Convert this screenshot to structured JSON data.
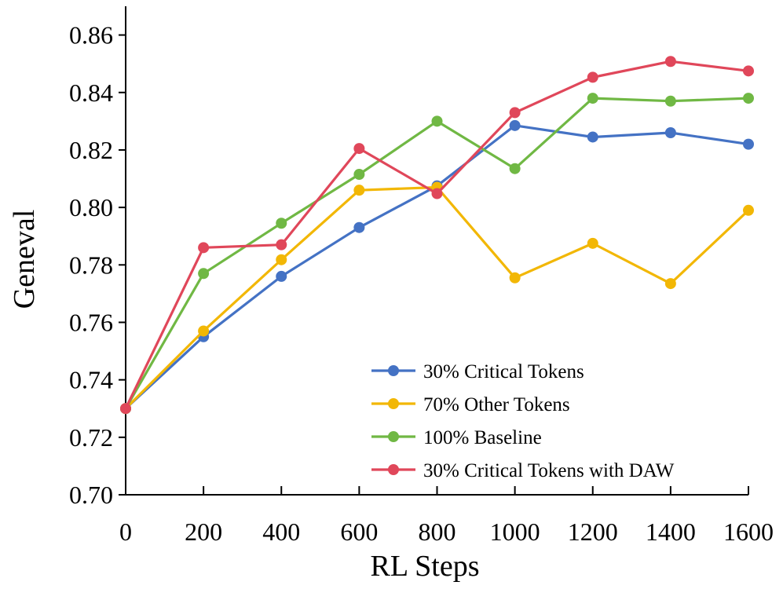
{
  "chart_data": {
    "type": "line",
    "title": "",
    "xlabel": "RL Steps",
    "ylabel": "Geneval",
    "x": [
      0,
      200,
      400,
      600,
      800,
      1000,
      1200,
      1400,
      1600
    ],
    "xticks": [
      "0",
      "200",
      "400",
      "600",
      "800",
      "1000",
      "1200",
      "1400",
      "1600"
    ],
    "yticks": [
      "0.70",
      "0.72",
      "0.74",
      "0.76",
      "0.78",
      "0.80",
      "0.82",
      "0.84",
      "0.86"
    ],
    "xlim": [
      0,
      1600
    ],
    "ylim": [
      0.7,
      0.87
    ],
    "grid": false,
    "legend_position": "bottom-right",
    "series": [
      {
        "name": "30% Critical Tokens",
        "color": "#4472c4",
        "values": [
          0.73,
          0.755,
          0.776,
          0.793,
          0.8075,
          0.8285,
          0.8245,
          0.826,
          0.822
        ]
      },
      {
        "name": "70% Other Tokens",
        "color": "#f2b705",
        "values": [
          0.73,
          0.757,
          0.7818,
          0.806,
          0.807,
          0.7755,
          0.7875,
          0.7735,
          0.799
        ]
      },
      {
        "name": "100% Baseline",
        "color": "#70b844",
        "values": [
          0.73,
          0.777,
          0.7945,
          0.8115,
          0.83,
          0.8135,
          0.838,
          0.837,
          0.838
        ]
      },
      {
        "name": "30% Critical Tokens with DAW",
        "color": "#e0475a",
        "values": [
          0.73,
          0.786,
          0.787,
          0.8205,
          0.8048,
          0.833,
          0.8453,
          0.8508,
          0.8475
        ]
      }
    ]
  }
}
